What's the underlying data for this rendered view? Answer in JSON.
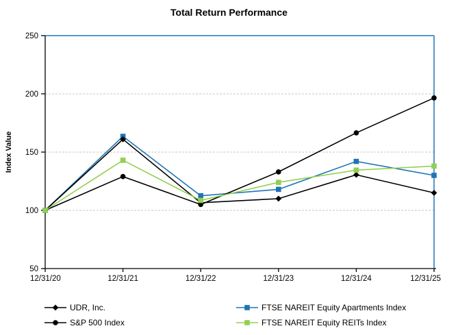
{
  "title": "Total Return Performance",
  "chart_data": {
    "type": "line",
    "title": "Total Return Performance",
    "xlabel": "",
    "ylabel": "Index Value",
    "x_labels": [
      "12/31/20",
      "12/31/21",
      "12/31/22",
      "12/31/23",
      "12/31/24",
      "12/31/25"
    ],
    "ylim": [
      50,
      250
    ],
    "y_ticks": [
      50,
      100,
      150,
      200,
      250
    ],
    "grid": "horizontal-dashed",
    "legend_position": "bottom-two-columns",
    "series": [
      {
        "name": "UDR, Inc.",
        "color": "#000000",
        "marker": "diamond",
        "values": [
          100,
          161,
          106.5,
          110,
          130.5,
          115
        ]
      },
      {
        "name": "S&P 500 Index",
        "color": "#000000",
        "marker": "circle",
        "values": [
          100,
          129,
          105,
          133,
          166.5,
          196.5
        ]
      },
      {
        "name": "FTSE NAREIT Equity Apartments Index",
        "color": "#1F75B4",
        "marker": "square",
        "values": [
          100,
          163.5,
          112.5,
          118,
          142,
          130
        ]
      },
      {
        "name": "FTSE NAREIT Equity REITs Index",
        "color": "#92D050",
        "marker": "square",
        "values": [
          100,
          143,
          108.5,
          124,
          134.5,
          138
        ]
      }
    ],
    "draw_order": [
      2,
      1,
      0,
      3
    ],
    "colors": {
      "axis": "#000000",
      "plot_border_top_right": "#1F75B4",
      "gridline": "#C6C6C6",
      "text": "#000000"
    }
  },
  "legend": {
    "columns": [
      [
        0,
        1
      ],
      [
        2,
        3
      ]
    ]
  }
}
